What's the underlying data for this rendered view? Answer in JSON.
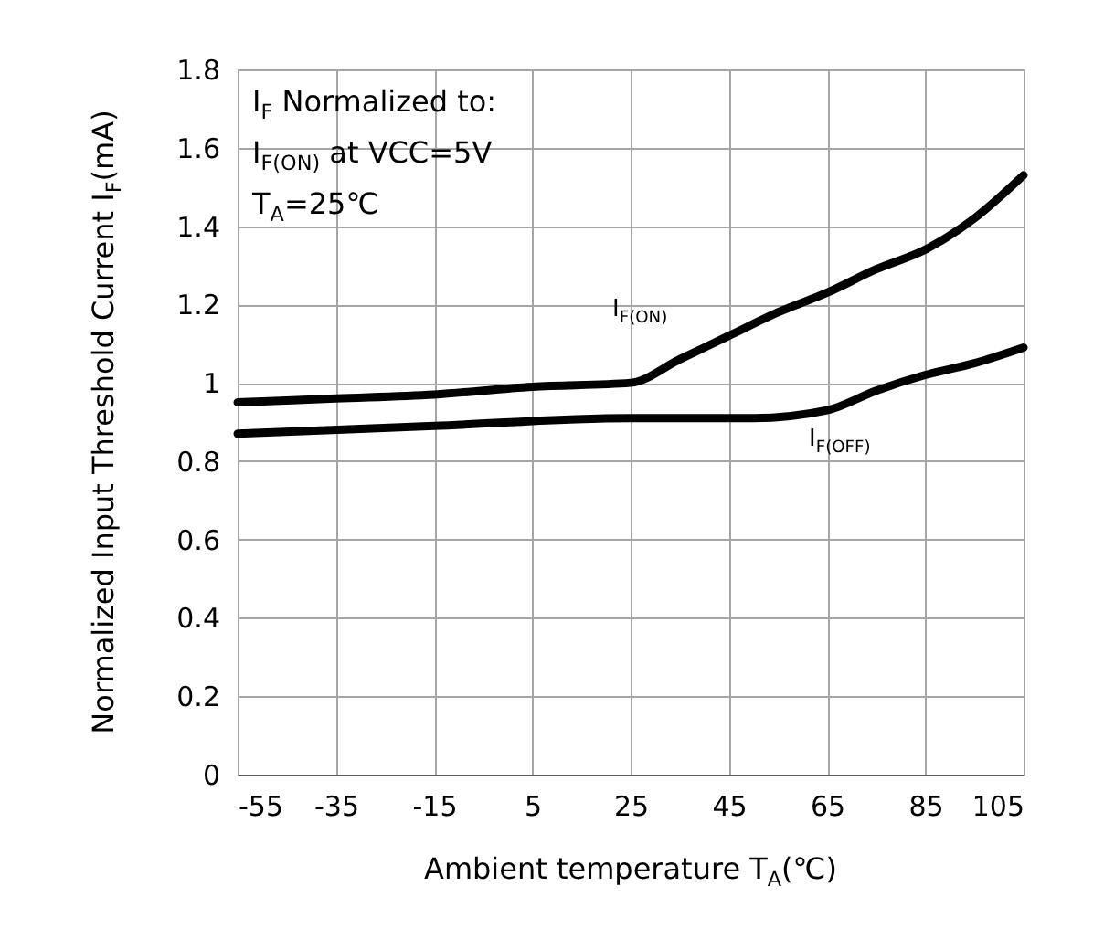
{
  "chart_data": {
    "type": "line",
    "xlabel": "Ambient temperature T$_{A}$(℃)",
    "ylabel": "Normalized Input Threshold Current I$_{F}$(mA)",
    "annotations": [
      "I$_{F}$ Normalized to:",
      "I$_{F(ON)}$ at VCC=5V",
      "T$_{A}$=25℃"
    ],
    "xlim": [
      -55,
      105
    ],
    "xticks": [
      -55,
      -35,
      -15,
      5,
      25,
      45,
      65,
      85,
      105
    ],
    "ylim": [
      0,
      1.8
    ],
    "yticks": [
      0,
      0.2,
      0.4,
      0.6,
      0.8,
      1,
      1.2,
      1.4,
      1.6,
      1.8
    ],
    "grid": true,
    "legend": false,
    "line_style": "solid",
    "marker": "none",
    "series": [
      {
        "name": "I$_{F(ON)}$",
        "color": "#000000",
        "x": [
          -55,
          -35,
          -15,
          5,
          25,
          35,
          45,
          55,
          65,
          75,
          85,
          95,
          105
        ],
        "values": [
          0.95,
          0.96,
          0.97,
          0.99,
          1.0,
          1.06,
          1.12,
          1.18,
          1.23,
          1.29,
          1.34,
          1.42,
          1.53
        ]
      },
      {
        "name": "I$_{F(OFF)}$",
        "color": "#000000",
        "x": [
          -55,
          -15,
          25,
          50,
          65,
          75,
          85,
          95,
          105
        ],
        "values": [
          0.87,
          0.89,
          0.91,
          0.91,
          0.93,
          0.98,
          1.02,
          1.05,
          1.09
        ]
      }
    ]
  }
}
